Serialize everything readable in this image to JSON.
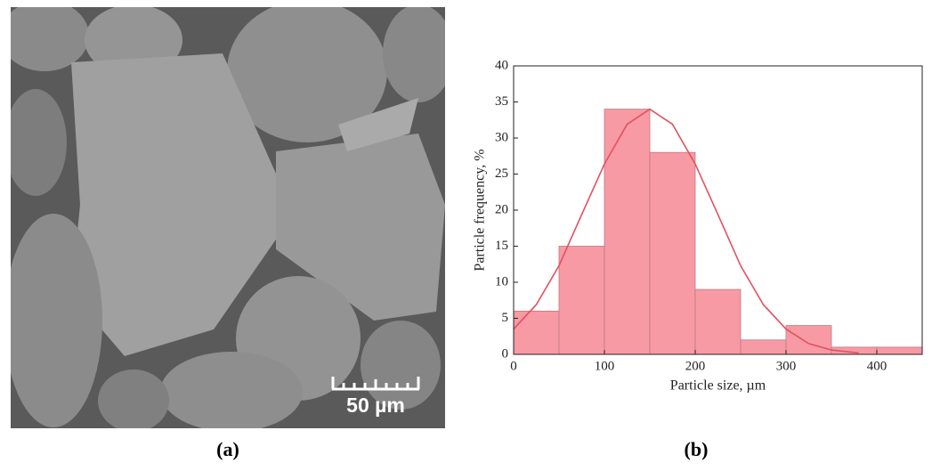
{
  "image": {
    "scale_bar": "50 µm"
  },
  "captions": [
    "(a)",
    "(b)"
  ],
  "chart_data": {
    "type": "histogram",
    "x_label": "Particle size, µm",
    "y_label": "Particle frequency, %",
    "bins": [
      0,
      50,
      100,
      150,
      200,
      250,
      300,
      350,
      400,
      450
    ],
    "values": [
      6,
      15,
      34,
      28,
      9,
      2,
      4,
      1,
      1
    ],
    "color": "#f79aa4",
    "fit": {
      "color": "#e4505e",
      "x": [
        0,
        25,
        50,
        75,
        100,
        125,
        150,
        175,
        200,
        225,
        250,
        275,
        300,
        325,
        350,
        380
      ],
      "values": [
        3.5,
        6.9,
        12.3,
        19.4,
        26.4,
        31.9,
        34,
        31.9,
        26.4,
        19.4,
        12.3,
        6.9,
        3.5,
        1.5,
        0.6,
        0.2
      ]
    },
    "xlim": [
      0,
      450
    ],
    "xticks": [
      0,
      100,
      200,
      300,
      400
    ],
    "ylim": [
      0,
      40
    ],
    "yticks": [
      0,
      5,
      10,
      15,
      20,
      25,
      30,
      35,
      40
    ]
  }
}
